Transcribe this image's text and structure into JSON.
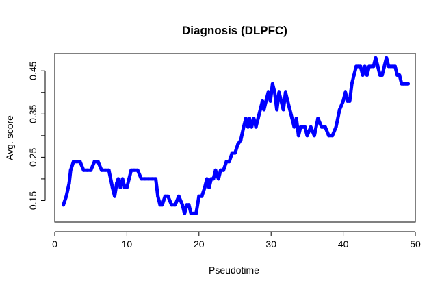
{
  "chart_data": {
    "type": "line",
    "title": "Diagnosis (DLPFC)",
    "xlabel": "Pseudotime",
    "ylabel": "Avg. score",
    "xlim": [
      0,
      50
    ],
    "ylim": [
      0.1,
      0.49
    ],
    "x_ticks": [
      0,
      10,
      20,
      30,
      40,
      50
    ],
    "x_tick_labels": [
      "0",
      "10",
      "20",
      "30",
      "40",
      "50"
    ],
    "y_ticks": [
      0.15,
      0.2,
      0.25,
      0.3,
      0.35,
      0.4,
      0.45
    ],
    "y_tick_labels": [
      "0.15",
      "",
      "0.25",
      "",
      "0.35",
      "",
      "0.45"
    ],
    "grid": false,
    "series": [
      {
        "color": "#0000ff",
        "x": [
          1.2,
          1.6,
          2.0,
          2.2,
          2.6,
          3.0,
          3.5,
          4.0,
          4.5,
          5.0,
          5.5,
          6.0,
          6.5,
          7.0,
          7.5,
          8.0,
          8.3,
          8.6,
          8.8,
          9.1,
          9.4,
          9.7,
          10.0,
          10.3,
          10.6,
          11.0,
          11.5,
          12.0,
          12.5,
          13.0,
          13.5,
          14.0,
          14.3,
          14.6,
          14.9,
          15.3,
          15.7,
          16.2,
          16.7,
          17.2,
          17.7,
          18.0,
          18.3,
          18.6,
          18.9,
          19.2,
          19.6,
          20.0,
          20.4,
          20.8,
          21.1,
          21.4,
          21.7,
          22.0,
          22.3,
          22.7,
          23.0,
          23.4,
          23.8,
          24.2,
          24.6,
          25.0,
          25.4,
          25.8,
          26.2,
          26.5,
          26.8,
          27.0,
          27.3,
          27.6,
          27.9,
          28.2,
          28.5,
          28.8,
          29.0,
          29.3,
          29.6,
          29.9,
          30.2,
          30.5,
          30.8,
          31.1,
          31.4,
          31.7,
          32.0,
          32.3,
          32.6,
          32.9,
          33.2,
          33.5,
          33.8,
          34.1,
          34.4,
          34.7,
          35.0,
          35.5,
          36.0,
          36.5,
          37.0,
          37.5,
          38.0,
          38.5,
          39.0,
          39.5,
          40.0,
          40.3,
          40.6,
          40.9,
          41.2,
          41.5,
          41.8,
          42.1,
          42.4,
          42.7,
          43.0,
          43.3,
          43.6,
          43.9,
          44.2,
          44.5,
          44.8,
          45.1,
          45.4,
          45.7,
          46.0,
          46.3,
          46.6,
          46.9,
          47.2,
          47.5,
          47.8,
          48.1,
          48.4,
          48.7,
          49.0
        ],
        "y": [
          0.14,
          0.16,
          0.19,
          0.22,
          0.24,
          0.24,
          0.24,
          0.22,
          0.22,
          0.22,
          0.24,
          0.24,
          0.22,
          0.22,
          0.22,
          0.18,
          0.16,
          0.19,
          0.2,
          0.18,
          0.2,
          0.18,
          0.18,
          0.2,
          0.22,
          0.22,
          0.22,
          0.2,
          0.2,
          0.2,
          0.2,
          0.2,
          0.16,
          0.14,
          0.14,
          0.16,
          0.16,
          0.14,
          0.14,
          0.16,
          0.14,
          0.12,
          0.14,
          0.14,
          0.12,
          0.12,
          0.12,
          0.16,
          0.16,
          0.18,
          0.2,
          0.18,
          0.2,
          0.2,
          0.22,
          0.2,
          0.22,
          0.22,
          0.24,
          0.24,
          0.26,
          0.26,
          0.28,
          0.29,
          0.32,
          0.34,
          0.32,
          0.34,
          0.32,
          0.34,
          0.32,
          0.34,
          0.36,
          0.38,
          0.36,
          0.38,
          0.4,
          0.38,
          0.42,
          0.4,
          0.36,
          0.4,
          0.38,
          0.36,
          0.4,
          0.38,
          0.36,
          0.34,
          0.32,
          0.34,
          0.3,
          0.32,
          0.32,
          0.32,
          0.3,
          0.32,
          0.3,
          0.34,
          0.32,
          0.32,
          0.3,
          0.3,
          0.32,
          0.36,
          0.38,
          0.4,
          0.38,
          0.38,
          0.42,
          0.44,
          0.46,
          0.46,
          0.46,
          0.44,
          0.46,
          0.44,
          0.46,
          0.46,
          0.46,
          0.48,
          0.46,
          0.44,
          0.44,
          0.46,
          0.48,
          0.46,
          0.46,
          0.46,
          0.46,
          0.44,
          0.44,
          0.42,
          0.42,
          0.42,
          0.42
        ]
      }
    ]
  }
}
